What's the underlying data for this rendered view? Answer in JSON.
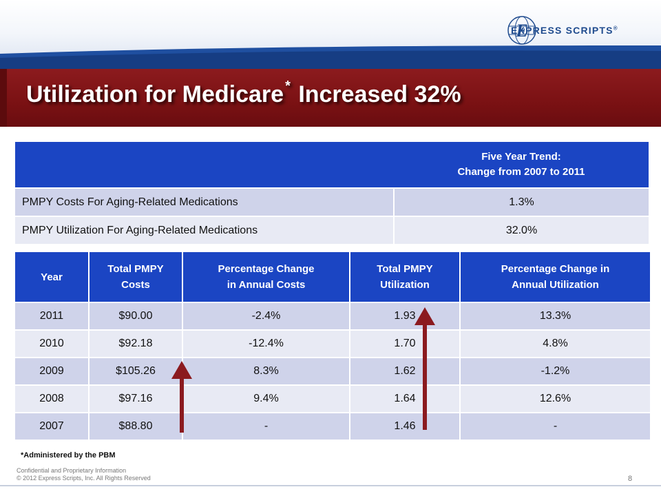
{
  "brand": {
    "name": "EXPRESS SCRIPTS",
    "mark": "®",
    "logo_icon": "express-scripts-globe-logo"
  },
  "title": {
    "main": "Utilization for Medicare",
    "star": "*",
    "suffix": "Increased 32%"
  },
  "trend_table": {
    "header_line1": "Five Year Trend:",
    "header_line2": "Change from 2007 to 2011",
    "rows": [
      {
        "label": "PMPY Costs For Aging-Related Medications",
        "value": "1.3%"
      },
      {
        "label": "PMPY Utilization For Aging-Related Medications",
        "value": "32.0%"
      }
    ]
  },
  "yearly_table": {
    "headers": [
      [
        "Year"
      ],
      [
        "Total PMPY",
        "Costs"
      ],
      [
        "Percentage Change",
        "in Annual Costs"
      ],
      [
        "Total PMPY",
        "Utilization"
      ],
      [
        "Percentage Change in",
        "Annual Utilization"
      ]
    ],
    "rows": [
      [
        "2011",
        "$90.00",
        "-2.4%",
        "1.93",
        "13.3%"
      ],
      [
        "2010",
        "$92.18",
        "-12.4%",
        "1.70",
        "4.8%"
      ],
      [
        "2009",
        "$105.26",
        "8.3%",
        "1.62",
        "-1.2%"
      ],
      [
        "2008",
        "$97.16",
        "9.4%",
        "1.64",
        "12.6%"
      ],
      [
        "2007",
        "$88.80",
        "-",
        "1.46",
        "-"
      ]
    ]
  },
  "footnote": "*Administered by the PBM",
  "confidential": {
    "line1": "Confidential and Proprietary Information",
    "line2": "© 2012 Express Scripts, Inc. All Rights Reserved"
  },
  "page_number": "8",
  "colors": {
    "header_blue": "#1b45c3",
    "banner_red": "#7a1113",
    "arrow_red": "#8b1a1f",
    "row_dark": "#cfd3ea",
    "row_light": "#e8eaf4"
  }
}
